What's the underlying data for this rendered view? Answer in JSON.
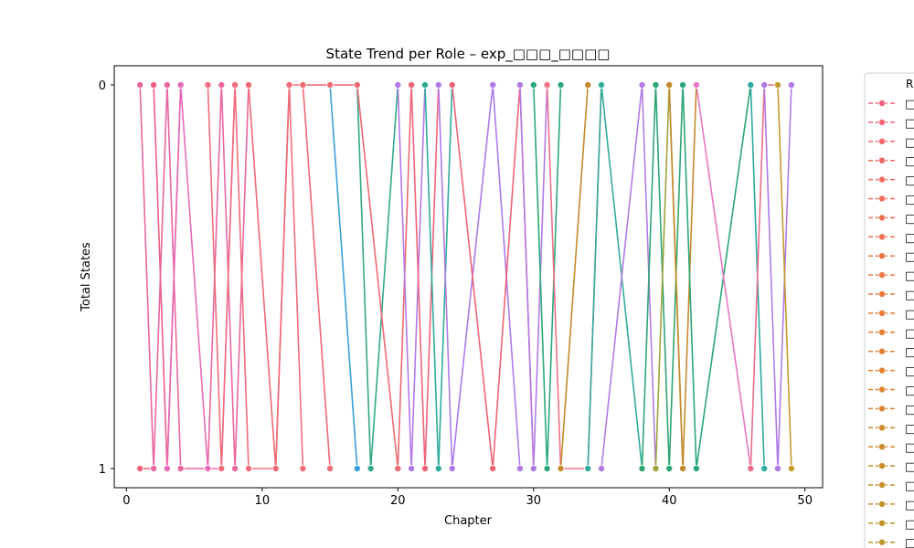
{
  "chart_data": {
    "type": "line",
    "title": "State Trend per Role – exp_□□□_□□□□",
    "xlabel": "Chapter",
    "ylabel": "Total States",
    "xlim": [
      -0.9,
      51.3
    ],
    "ylim": [
      1.05,
      -0.05
    ],
    "y_axis_inverted": true,
    "x_ticks": [
      0,
      10,
      20,
      30,
      40,
      50
    ],
    "x_tick_labels": [
      "0",
      "10",
      "20",
      "30",
      "40",
      "50"
    ],
    "y_ticks": [
      0,
      1
    ],
    "y_tick_labels": [
      "0",
      "1"
    ],
    "grid": false,
    "legend": {
      "placement": "right, outside plot area (clipped)",
      "title": "R",
      "entry_labels_rendered_as": "□",
      "entry_count_visible": 24
    },
    "series": [
      {
        "color": "#f0627a",
        "x": [
          1,
          2
        ],
        "y": [
          1,
          1
        ]
      },
      {
        "color": "#ee5f83",
        "x": [
          2,
          3,
          4
        ],
        "y": [
          0,
          1,
          0
        ]
      },
      {
        "color": "#e867a0",
        "x": [
          1,
          2,
          3,
          4,
          6,
          7,
          8,
          9
        ],
        "y": [
          0,
          1,
          0,
          1,
          1,
          0,
          1,
          0
        ]
      },
      {
        "color": "#e66bb8",
        "x": [
          3,
          4,
          6,
          7,
          8
        ],
        "y": [
          1,
          0,
          1,
          1,
          0
        ]
      },
      {
        "color": "#f06d7d",
        "x": [
          6,
          7,
          8,
          9,
          11,
          12,
          13
        ],
        "y": [
          0,
          1,
          0,
          1,
          1,
          0,
          1
        ]
      },
      {
        "color": "#ef6a76",
        "x": [
          9,
          11,
          12,
          13,
          15
        ],
        "y": [
          0,
          1,
          0,
          0,
          1
        ]
      },
      {
        "color": "#3aa1d8",
        "x": [
          15,
          17
        ],
        "y": [
          0,
          1
        ]
      },
      {
        "color": "#34a882",
        "x": [
          17,
          18
        ],
        "y": [
          0,
          1
        ]
      },
      {
        "color": "#31a98c",
        "x": [
          18,
          20
        ],
        "y": [
          1,
          0
        ]
      },
      {
        "color": "#ec6a72",
        "x": [
          13,
          15,
          17,
          20,
          21
        ],
        "y": [
          0,
          0,
          0,
          1,
          0
        ]
      },
      {
        "color": "#b279e6",
        "x": [
          20,
          21,
          22
        ],
        "y": [
          0,
          1,
          0
        ]
      },
      {
        "color": "#f0627a",
        "x": [
          21,
          22,
          23
        ],
        "y": [
          0,
          1,
          0
        ]
      },
      {
        "color": "#2fab9a",
        "x": [
          22,
          23,
          24
        ],
        "y": [
          0,
          1,
          0
        ]
      },
      {
        "color": "#ad7ae8",
        "x": [
          23,
          24,
          27,
          29
        ],
        "y": [
          0,
          1,
          0,
          1
        ]
      },
      {
        "color": "#ee6475",
        "x": [
          24,
          27,
          29,
          30
        ],
        "y": [
          0,
          1,
          0,
          1
        ]
      },
      {
        "color": "#b07be6",
        "x": [
          29,
          30,
          31
        ],
        "y": [
          0,
          1,
          0
        ]
      },
      {
        "color": "#2aa77d",
        "x": [
          30,
          31,
          32
        ],
        "y": [
          0,
          1,
          0
        ]
      },
      {
        "color": "#ef6f88",
        "x": [
          31,
          32,
          34,
          35
        ],
        "y": [
          0,
          1,
          1,
          0
        ]
      },
      {
        "color": "#c38a2b",
        "x": [
          32,
          34
        ],
        "y": [
          1,
          0
        ]
      },
      {
        "color": "#32ab9b",
        "x": [
          34,
          35,
          38
        ],
        "y": [
          1,
          0,
          1
        ]
      },
      {
        "color": "#b27ae5",
        "x": [
          35,
          38,
          39
        ],
        "y": [
          1,
          0,
          1
        ]
      },
      {
        "color": "#2fa572",
        "x": [
          38,
          39,
          40,
          41
        ],
        "y": [
          1,
          0,
          1,
          0
        ]
      },
      {
        "color": "#9fa33a",
        "x": [
          39,
          40,
          41
        ],
        "y": [
          1,
          0,
          1
        ]
      },
      {
        "color": "#c48a2e",
        "x": [
          40,
          41,
          42
        ],
        "y": [
          0,
          1,
          0
        ]
      },
      {
        "color": "#2aa678",
        "x": [
          41,
          42,
          46
        ],
        "y": [
          0,
          1,
          0
        ]
      },
      {
        "color": "#e878c2",
        "x": [
          42,
          46
        ],
        "y": [
          0,
          1
        ]
      },
      {
        "color": "#2ea8a0",
        "x": [
          46,
          47
        ],
        "y": [
          0,
          1
        ]
      },
      {
        "color": "#e96d8a",
        "x": [
          46,
          47,
          48
        ],
        "y": [
          1,
          0,
          0
        ]
      },
      {
        "color": "#b07ae6",
        "x": [
          47,
          48,
          49
        ],
        "y": [
          0,
          1,
          0
        ]
      },
      {
        "color": "#c69a2f",
        "x": [
          48,
          49
        ],
        "y": [
          0,
          1
        ]
      }
    ]
  }
}
